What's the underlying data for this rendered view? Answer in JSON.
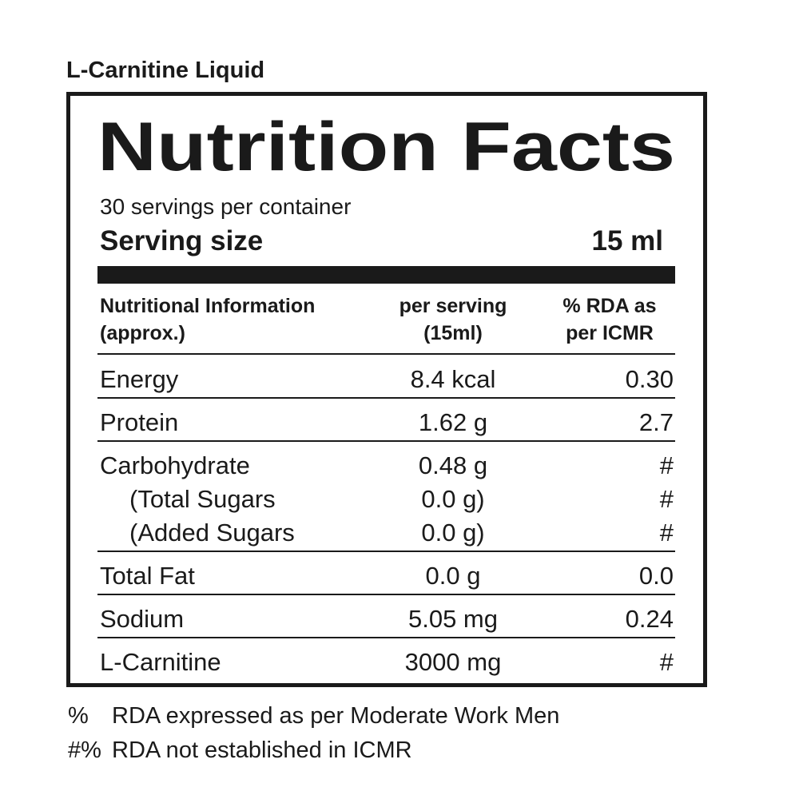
{
  "product": "L-Carnitine Liquid",
  "title": "Nutrition Facts",
  "servings": "30 servings per container",
  "serving_size": {
    "label": "Serving size",
    "value": "15 ml"
  },
  "table": {
    "header": [
      [
        "Nutritional Information",
        "(approx.)"
      ],
      [
        "per serving",
        "(15ml)"
      ],
      [
        "% RDA as",
        "per ICMR"
      ]
    ],
    "groups": [
      [
        [
          "Energy",
          "8.4 kcal",
          "0.30"
        ]
      ],
      [
        [
          "Protein",
          "1.62 g",
          "2.7"
        ]
      ],
      [
        [
          "Carbohydrate",
          "0.48 g",
          "#"
        ],
        [
          "(Total Sugars",
          "0.0 g)",
          "#"
        ],
        [
          "(Added Sugars",
          "0.0 g)",
          "#"
        ]
      ],
      [
        [
          "Total Fat",
          "0.0 g",
          "0.0"
        ]
      ],
      [
        [
          "Sodium",
          "5.05 mg",
          "0.24"
        ]
      ],
      [
        [
          "L-Carnitine",
          "3000 mg",
          "#"
        ]
      ]
    ]
  },
  "footnotes": [
    [
      "%",
      "RDA expressed as per Moderate Work Men"
    ],
    [
      "#%",
      "RDA not established in ICMR"
    ]
  ]
}
